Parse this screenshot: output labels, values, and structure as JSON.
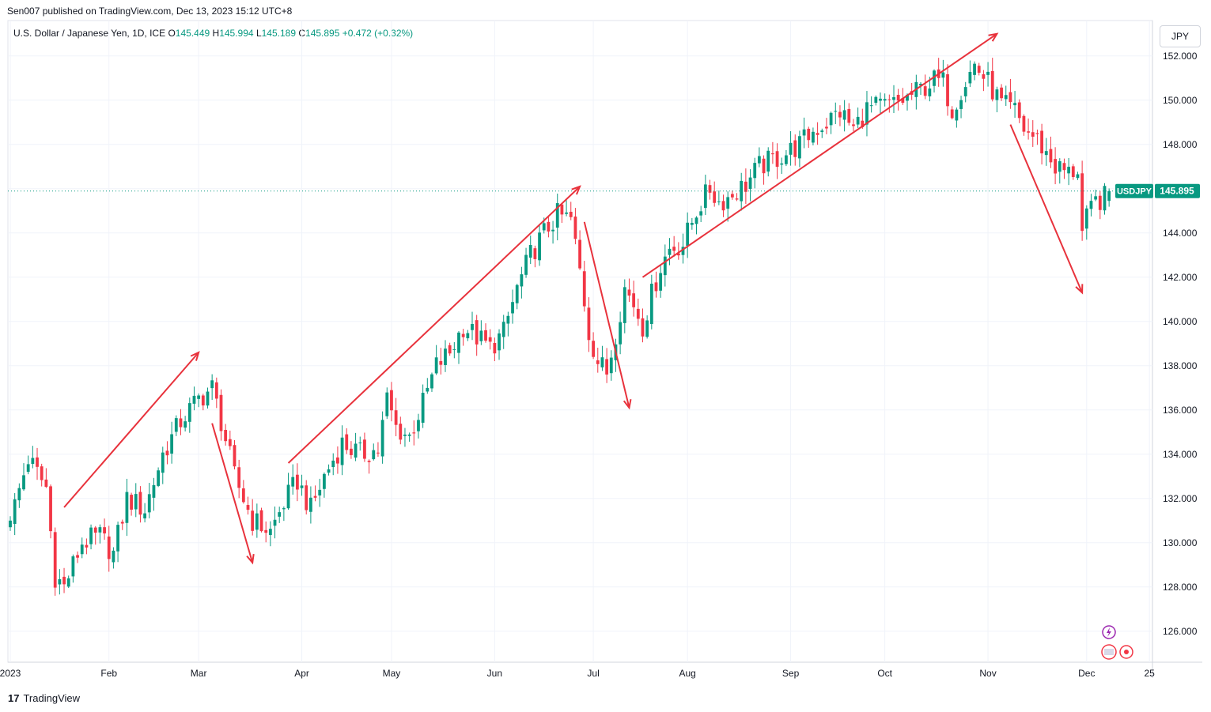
{
  "header": {
    "published": "Sen007 published on TradingView.com, Dec 13, 2023 15:12 UTC+8"
  },
  "legend": {
    "symbol": "U.S. Dollar / Japanese Yen, 1D, ICE",
    "o_label": "O",
    "o": "145.449",
    "h_label": "H",
    "h": "145.994",
    "l_label": "L",
    "l": "145.189",
    "c_label": "C",
    "c": "145.895",
    "change": "+0.472 (+0.32%)"
  },
  "currency": "JPY",
  "footer": {
    "brand": "TradingView",
    "logo": "17"
  },
  "price_tag": {
    "symbol": "USDJPY",
    "value": "145.895"
  },
  "colors": {
    "up": "#089981",
    "down": "#f23645",
    "arrow": "#e8323c",
    "grid": "#f0f3fa",
    "dotted": "#089981"
  },
  "chart_data": {
    "type": "candlestick",
    "symbol": "USDJPY",
    "ylim": [
      124.6,
      153.6
    ],
    "y_ticks": [
      126,
      128,
      130,
      132,
      134,
      136,
      138,
      140,
      142,
      144,
      146,
      148,
      150,
      152
    ],
    "y_tick_labels": [
      "126.000",
      "128.000",
      "130.000",
      "132.000",
      "134.000",
      "136.000",
      "138.000",
      "140.000",
      "142.000",
      "144.000",
      "146.000",
      "148.000",
      "150.000",
      "152.000"
    ],
    "x_labels": [
      {
        "label": "2023",
        "index": 0
      },
      {
        "label": "Feb",
        "index": 22
      },
      {
        "label": "Mar",
        "index": 42
      },
      {
        "label": "Apr",
        "index": 65
      },
      {
        "label": "May",
        "index": 85
      },
      {
        "label": "Jun",
        "index": 108
      },
      {
        "label": "Jul",
        "index": 130
      },
      {
        "label": "Aug",
        "index": 151
      },
      {
        "label": "Sep",
        "index": 174
      },
      {
        "label": "Oct",
        "index": 195
      },
      {
        "label": "Nov",
        "index": 218
      },
      {
        "label": "Dec",
        "index": 240
      },
      {
        "label": "25",
        "index": 254
      }
    ],
    "last_price": 145.895,
    "anchors": [
      [
        0,
        131.0
      ],
      [
        4,
        133.8
      ],
      [
        8,
        132.5
      ],
      [
        10,
        128.5
      ],
      [
        12,
        128.0
      ],
      [
        16,
        130.0
      ],
      [
        20,
        130.3
      ],
      [
        23,
        129.5
      ],
      [
        26,
        132.0
      ],
      [
        30,
        131.5
      ],
      [
        34,
        134.0
      ],
      [
        38,
        135.5
      ],
      [
        42,
        136.5
      ],
      [
        45,
        137.0
      ],
      [
        47,
        135.5
      ],
      [
        50,
        133.0
      ],
      [
        54,
        131.0
      ],
      [
        58,
        130.5
      ],
      [
        61,
        131.8
      ],
      [
        64,
        132.8
      ],
      [
        67,
        131.5
      ],
      [
        70,
        133.0
      ],
      [
        74,
        134.5
      ],
      [
        78,
        134.0
      ],
      [
        82,
        134.2
      ],
      [
        84,
        136.5
      ],
      [
        86,
        135.2
      ],
      [
        89,
        134.8
      ],
      [
        92,
        136.3
      ],
      [
        95,
        138.0
      ],
      [
        98,
        138.6
      ],
      [
        101,
        139.8
      ],
      [
        104,
        139.3
      ],
      [
        107,
        138.8
      ],
      [
        110,
        139.5
      ],
      [
        113,
        141.5
      ],
      [
        116,
        143.0
      ],
      [
        119,
        144.0
      ],
      [
        122,
        144.8
      ],
      [
        125,
        144.6
      ],
      [
        127,
        142.3
      ],
      [
        129,
        139.5
      ],
      [
        131,
        138.2
      ],
      [
        133,
        137.7
      ],
      [
        135,
        139.5
      ],
      [
        137,
        141.5
      ],
      [
        139,
        140.8
      ],
      [
        141,
        139.8
      ],
      [
        143,
        141.2
      ],
      [
        145,
        142.5
      ],
      [
        147,
        143.3
      ],
      [
        150,
        143.5
      ],
      [
        153,
        145.0
      ],
      [
        156,
        146.0
      ],
      [
        158,
        145.4
      ],
      [
        160,
        145.6
      ],
      [
        162,
        145.9
      ],
      [
        164,
        146.2
      ],
      [
        167,
        147.0
      ],
      [
        170,
        147.3
      ],
      [
        173,
        147.6
      ],
      [
        176,
        148.0
      ],
      [
        179,
        148.6
      ],
      [
        182,
        149.0
      ],
      [
        185,
        149.5
      ],
      [
        188,
        148.7
      ],
      [
        191,
        149.6
      ],
      [
        194,
        149.7
      ],
      [
        197,
        149.8
      ],
      [
        200,
        150.1
      ],
      [
        203,
        150.5
      ],
      [
        206,
        150.9
      ],
      [
        208,
        150.8
      ],
      [
        210,
        149.6
      ],
      [
        212,
        150.5
      ],
      [
        215,
        151.6
      ],
      [
        218,
        150.8
      ],
      [
        221,
        149.8
      ],
      [
        224,
        149.5
      ],
      [
        226,
        148.7
      ],
      [
        229,
        148.2
      ],
      [
        231,
        147.6
      ],
      [
        233,
        147.0
      ],
      [
        236,
        146.7
      ],
      [
        238,
        146.9
      ],
      [
        239,
        144.0
      ],
      [
        240,
        144.6
      ],
      [
        242,
        145.4
      ],
      [
        244,
        145.6
      ],
      [
        245,
        145.9
      ]
    ],
    "annotations": {
      "arrows": [
        {
          "from": [
            12,
            131.6
          ],
          "to": [
            42,
            138.6
          ]
        },
        {
          "from": [
            45,
            135.4
          ],
          "to": [
            54,
            129.1
          ]
        },
        {
          "from": [
            62,
            133.6
          ],
          "to": [
            127,
            146.1
          ]
        },
        {
          "from": [
            128,
            144.5
          ],
          "to": [
            138,
            136.1
          ]
        },
        {
          "from": [
            141,
            142.0
          ],
          "to": [
            220,
            153.0
          ]
        },
        {
          "from": [
            223,
            148.9
          ],
          "to": [
            239,
            141.3
          ]
        }
      ]
    }
  }
}
